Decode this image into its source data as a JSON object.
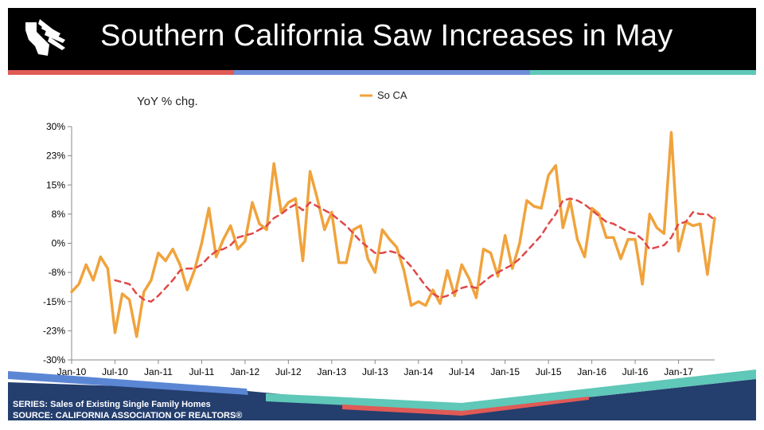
{
  "header": {
    "title": "Southern California Saw Increases in May",
    "logo_icon": "california-realtors-logo-icon"
  },
  "colors": {
    "header_bg": "#000000",
    "accent_red": "#e05a56",
    "accent_blue": "#6f8fd8",
    "accent_teal": "#5fc8b8",
    "series_line": "#f0a33c",
    "moving_avg": "#e04848",
    "footer_navy": "#243e6e"
  },
  "footer": {
    "series_note": "SERIES: Sales of Existing Single Family Homes",
    "source_note": "SOURCE:  CALIFORNIA ASSOCIATION OF REALTORS®"
  },
  "chart_data": {
    "type": "line",
    "title": "",
    "ylabel": "YoY % chg.",
    "xlabel": "",
    "ylim": [
      -30,
      30
    ],
    "y_tick_labels": [
      "30%",
      "23%",
      "15%",
      "8%",
      "0%",
      "-8%",
      "-15%",
      "-23%",
      "-30%"
    ],
    "x_tick_labels": [
      "Jan-10",
      "Jul-10",
      "Jan-11",
      "Jul-11",
      "Jan-12",
      "Jul-12",
      "Jan-13",
      "Jul-13",
      "Jan-14",
      "Jul-14",
      "Jan-15",
      "Jul-15",
      "Jan-16",
      "Jul-16",
      "Jan-17"
    ],
    "x_start": "Jan-10",
    "x_end": "May-17",
    "legend": {
      "position": "top-center",
      "entries": [
        "So CA"
      ]
    },
    "grid": false,
    "series": [
      {
        "name": "So CA",
        "style": "solid",
        "values": [
          -12.5,
          -10.5,
          -5.5,
          -9.5,
          -3.5,
          -6.5,
          -23.0,
          -13.0,
          -14.5,
          -24.0,
          -12.5,
          -9.5,
          -2.5,
          -4.5,
          -1.5,
          -5.5,
          -12.0,
          -7.0,
          0.0,
          9.0,
          -3.5,
          1.0,
          4.5,
          -1.5,
          0.5,
          10.5,
          5.0,
          3.5,
          20.5,
          8.0,
          10.5,
          11.5,
          -4.5,
          18.5,
          11.5,
          3.5,
          8.0,
          -5.0,
          -5.0,
          3.5,
          4.5,
          -4.0,
          -7.5,
          3.5,
          1.0,
          -1.0,
          -7.0,
          -16.0,
          -15.0,
          -16.0,
          -12.0,
          -15.5,
          -7.0,
          -13.5,
          -5.5,
          -9.0,
          -14.0,
          -1.5,
          -2.5,
          -8.5,
          2.0,
          -6.5,
          0.0,
          11.0,
          9.5,
          9.0,
          17.5,
          20.0,
          4.0,
          11.0,
          1.0,
          -3.5,
          9.0,
          7.5,
          1.5,
          1.5,
          -4.0,
          1.0,
          1.0,
          -10.5,
          7.5,
          4.0,
          2.5,
          28.5,
          -2.0,
          5.5,
          4.5,
          5.0,
          -8.0,
          6.5
        ]
      },
      {
        "name": "",
        "style": "dashed",
        "values": [
          null,
          null,
          null,
          null,
          null,
          null,
          -9.5,
          -10.0,
          -10.5,
          -13.0,
          -14.5,
          -15.0,
          -13.5,
          -11.5,
          -9.5,
          -7.0,
          -6.5,
          -6.5,
          -5.5,
          -3.5,
          -2.0,
          -1.5,
          -0.5,
          1.5,
          2.0,
          2.5,
          3.5,
          4.5,
          6.5,
          7.5,
          9.0,
          10.0,
          8.5,
          10.5,
          9.5,
          8.5,
          7.5,
          6.0,
          4.5,
          2.5,
          0.5,
          -1.0,
          -2.5,
          -2.5,
          -2.0,
          -2.5,
          -4.0,
          -6.0,
          -8.5,
          -11.0,
          -13.0,
          -14.0,
          -13.5,
          -12.5,
          -11.5,
          -11.0,
          -11.5,
          -10.0,
          -8.5,
          -7.5,
          -6.5,
          -5.5,
          -4.0,
          -2.0,
          0.0,
          2.0,
          5.0,
          7.5,
          11.0,
          11.5,
          11.0,
          10.0,
          8.5,
          7.0,
          5.5,
          5.0,
          4.0,
          3.0,
          2.5,
          1.0,
          -1.5,
          -1.0,
          -0.5,
          1.5,
          5.0,
          5.5,
          8.0,
          7.5,
          7.5,
          6.0
        ]
      }
    ]
  }
}
